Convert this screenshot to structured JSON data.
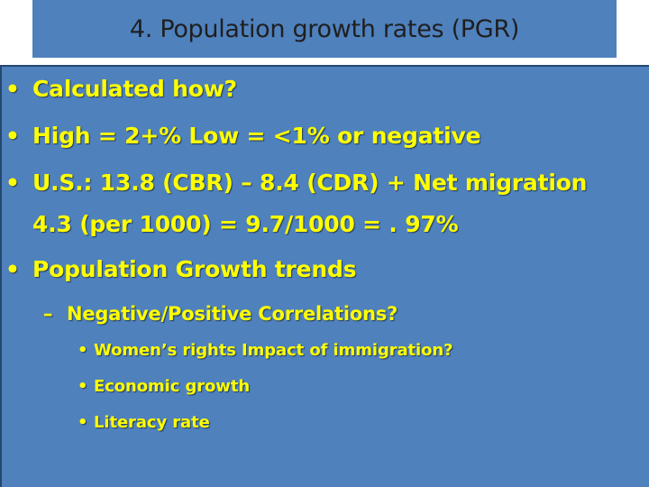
{
  "slide": {
    "title": "4. Population growth rates (PGR)",
    "bullets_level1": [
      "Calculated how?",
      "High = 2+%   Low = <1% or negative",
      "U.S.: 13.8 (CBR) – 8.4 (CDR) + Net migration",
      "4.3 (per 1000) = 9.7/1000 = . 97%",
      "Population Growth trends"
    ],
    "bullet_symbol": "•",
    "dash_symbol": "–",
    "subbullet": "Negative/Positive Correlations?",
    "subsubbullets": [
      "Women’s rights  Impact of immigration?",
      "Economic growth",
      "Literacy rate"
    ]
  },
  "colors": {
    "panel": "#4f81bd",
    "text": "#ffff00",
    "title": "#1f1f1f"
  }
}
